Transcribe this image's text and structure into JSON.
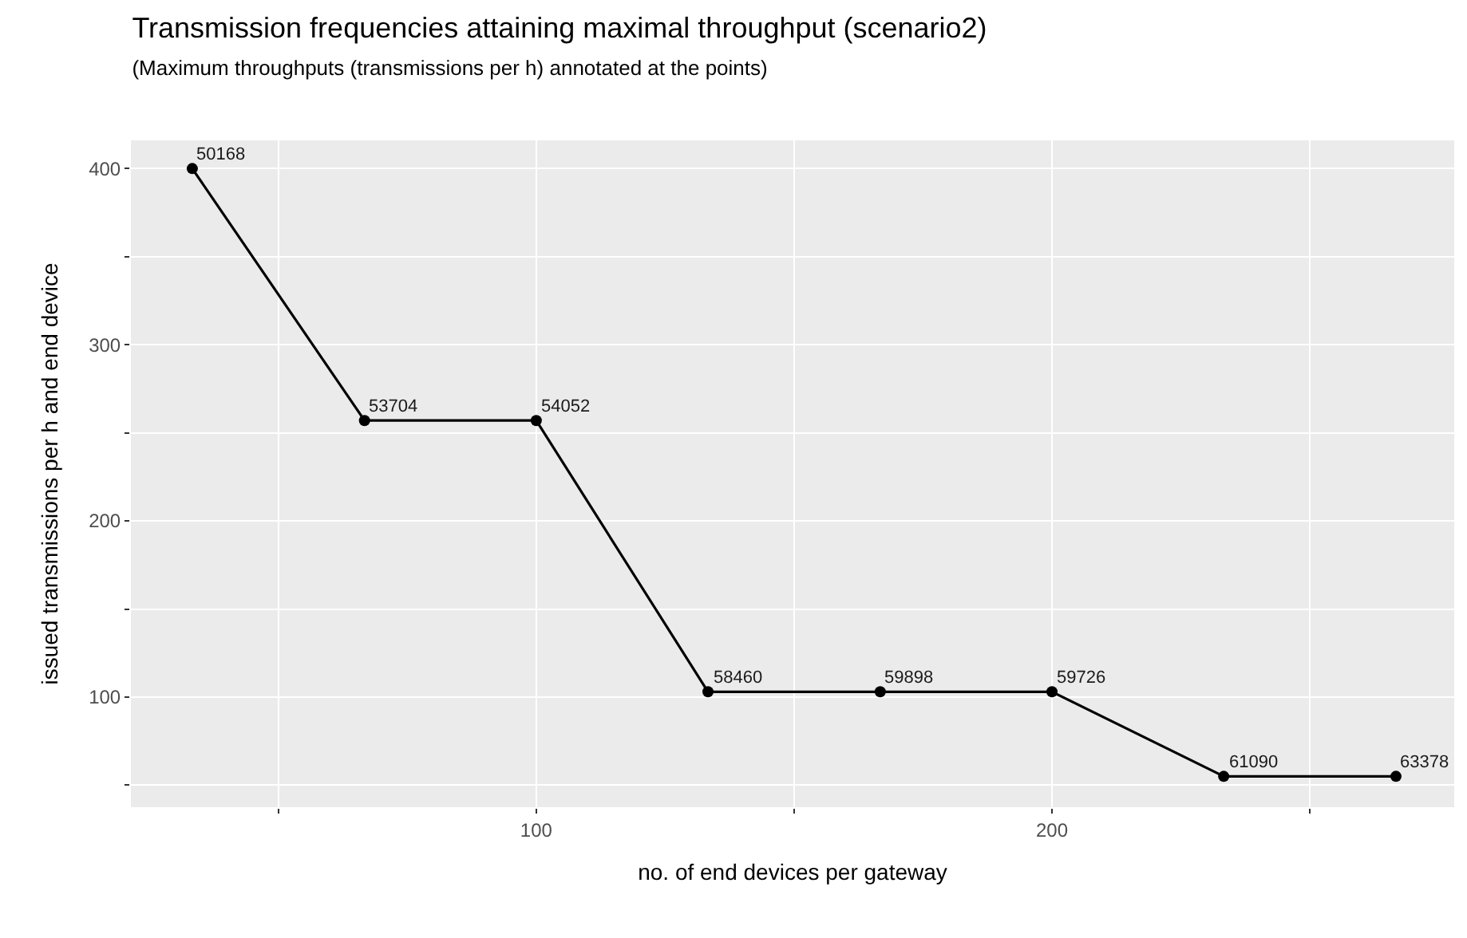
{
  "chart_data": {
    "type": "line",
    "title": "Transmission frequencies attaining maximal throughput (scenario2)",
    "subtitle": "(Maximum throughputs (transmissions per h) annotated at the points)",
    "xlabel": "no. of end devices per gateway",
    "ylabel": "issued transmissions per h and end device",
    "x": [
      33.3,
      66.7,
      100,
      133.3,
      166.7,
      200,
      233.3,
      266.7
    ],
    "series": [
      {
        "color": "#000000",
        "values": [
          400,
          257,
          257,
          103,
          103,
          103,
          55,
          55
        ]
      }
    ],
    "annotations": [
      {
        "text": "50168",
        "x": 33.3,
        "y": 400
      },
      {
        "text": "53704",
        "x": 66.7,
        "y": 257
      },
      {
        "text": "54052",
        "x": 100,
        "y": 257
      },
      {
        "text": "58460",
        "x": 133.3,
        "y": 103
      },
      {
        "text": "59898",
        "x": 166.7,
        "y": 103
      },
      {
        "text": "59726",
        "x": 200,
        "y": 103
      },
      {
        "text": "61090",
        "x": 233.3,
        "y": 55
      },
      {
        "text": "63378",
        "x": 266.7,
        "y": 55
      }
    ],
    "xlim": [
      21.4,
      278
    ],
    "ylim": [
      37.5,
      416
    ],
    "xticks": [
      {
        "value": 50,
        "label": null
      },
      100,
      {
        "value": 150,
        "label": null
      },
      200,
      {
        "value": 250,
        "label": null
      }
    ],
    "yticks": [
      {
        "value": 50,
        "label": null
      },
      100,
      {
        "value": 150,
        "label": null
      },
      200,
      {
        "value": 250,
        "label": null
      },
      300,
      {
        "value": 350,
        "label": null
      },
      400
    ],
    "grid": true,
    "marker": "circle",
    "line_style": "solid",
    "legend": false
  }
}
